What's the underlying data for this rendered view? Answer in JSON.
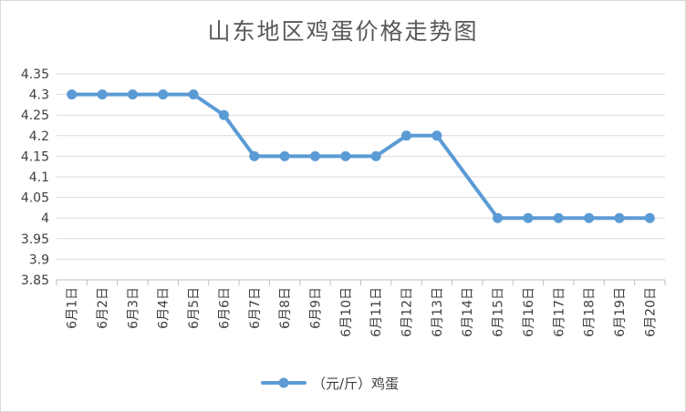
{
  "chart_data": {
    "type": "line",
    "title": "山东地区鸡蛋价格走势图",
    "xlabel": "",
    "ylabel": "",
    "ylim": [
      3.85,
      4.35
    ],
    "yticks": [
      "3.85",
      "3.9",
      "3.95",
      "4",
      "4.05",
      "4.1",
      "4.15",
      "4.2",
      "4.25",
      "4.3",
      "4.35"
    ],
    "categories": [
      "6月1日",
      "6月2日",
      "6月3日",
      "6月4日",
      "6月5日",
      "6月6日",
      "6月7日",
      "6月8日",
      "6月9日",
      "6月10日",
      "6月11日",
      "6月12日",
      "6月13日",
      "6月14日",
      "6月15日",
      "6月16日",
      "6月17日",
      "6月18日",
      "6月19日",
      "6月20日"
    ],
    "series": [
      {
        "name": "（元/斤）鸡蛋",
        "color": "#5b9bd5",
        "values": [
          4.3,
          4.3,
          4.3,
          4.3,
          4.3,
          4.25,
          4.15,
          4.15,
          4.15,
          4.15,
          4.15,
          4.2,
          4.2,
          null,
          4.0,
          4.0,
          4.0,
          4.0,
          4.0,
          4.0
        ]
      }
    ],
    "grid": true,
    "legend": "bottom"
  }
}
